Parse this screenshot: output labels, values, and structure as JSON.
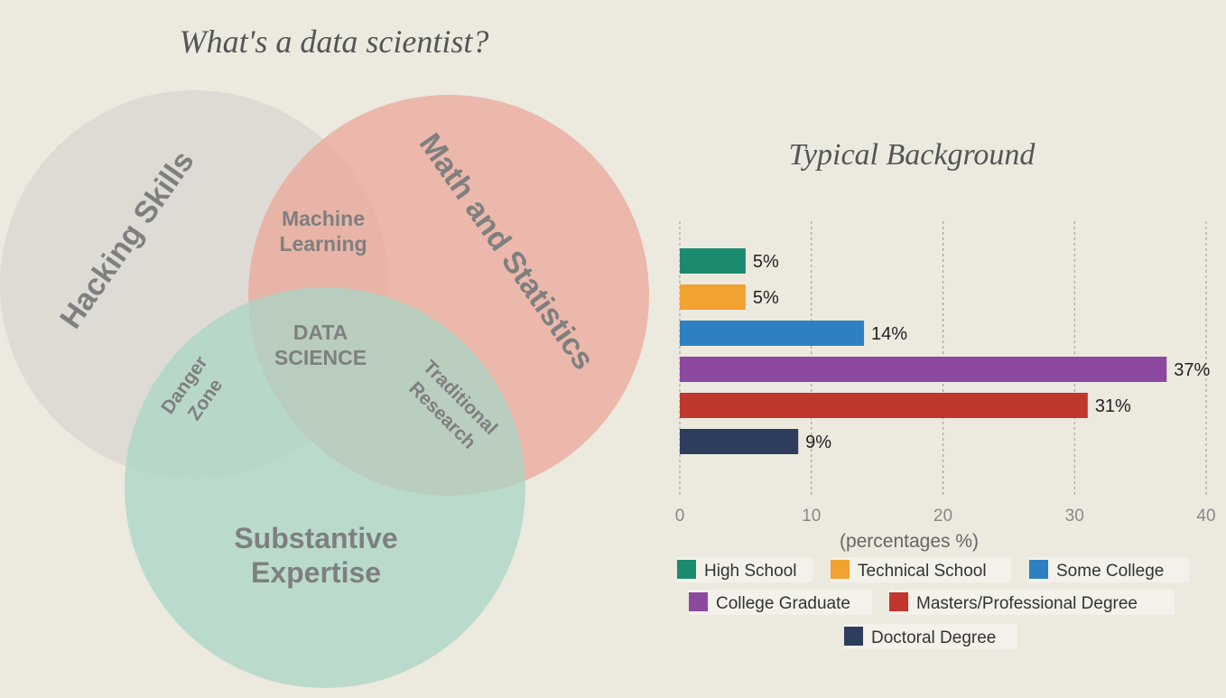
{
  "title": "What's a data scientist?",
  "venn": {
    "circles": [
      {
        "label": "Hacking Skills",
        "color": "#d9d6d0"
      },
      {
        "label": "Math and Statistics",
        "color": "#eba79a"
      },
      {
        "label": "Substantive Expertise",
        "color": "#a9d6c5"
      }
    ],
    "regions": [
      {
        "lines": [
          "Machine",
          "Learning"
        ]
      },
      {
        "lines": [
          "DATA",
          "SCIENCE"
        ]
      },
      {
        "lines": [
          "Danger",
          "Zone"
        ]
      },
      {
        "lines": [
          "Traditional",
          "Research"
        ]
      }
    ]
  },
  "chart_data": {
    "type": "hbar",
    "title": "Typical Background",
    "categories": [
      "High School",
      "Technical School",
      "Some College",
      "College Graduate",
      "Masters/Professional Degree",
      "Doctoral Degree"
    ],
    "values": [
      5,
      5,
      14,
      37,
      31,
      9
    ],
    "value_labels": [
      "5%",
      "5%",
      "14%",
      "37%",
      "31%",
      "9%"
    ],
    "colors": [
      "#1b8a6f",
      "#f2a231",
      "#2f80c2",
      "#8b4a9f",
      "#c0372e",
      "#2d3d5e"
    ],
    "xlabel": "(percentages %)",
    "xlim": [
      0,
      40
    ],
    "xticks": [
      0,
      10,
      20,
      30,
      40
    ],
    "grid": true
  }
}
